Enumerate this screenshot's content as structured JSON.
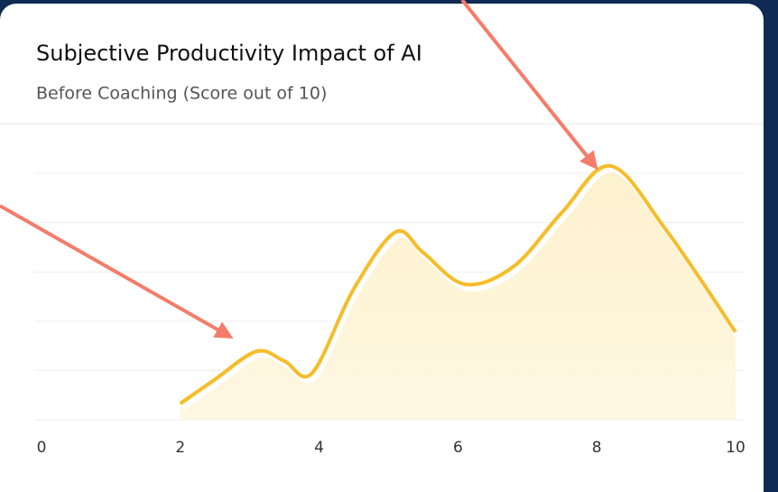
{
  "chart_data": {
    "type": "area",
    "title": "Subjective Productivity Impact of AI",
    "subtitle": "Before Coaching (Score out of 10)",
    "x": [
      2,
      2.5,
      3.1,
      3.5,
      3.9,
      4.5,
      5.1,
      5.5,
      6.1,
      6.8,
      7.5,
      8.2,
      9,
      10
    ],
    "series": [
      {
        "color": "#f5bd2a",
        "values": [
          0.33,
          0.82,
          1.39,
          1.19,
          0.95,
          2.66,
          3.81,
          3.39,
          2.75,
          3.11,
          4.21,
          5.15,
          3.85,
          1.78
        ]
      }
    ],
    "xlim": [
      0,
      10
    ],
    "xticks": [
      0,
      2,
      4,
      6,
      8,
      10
    ],
    "ylim": [
      0,
      5.5
    ],
    "yticks": [
      0,
      1,
      2,
      3,
      4,
      5
    ],
    "grid": true
  }
}
